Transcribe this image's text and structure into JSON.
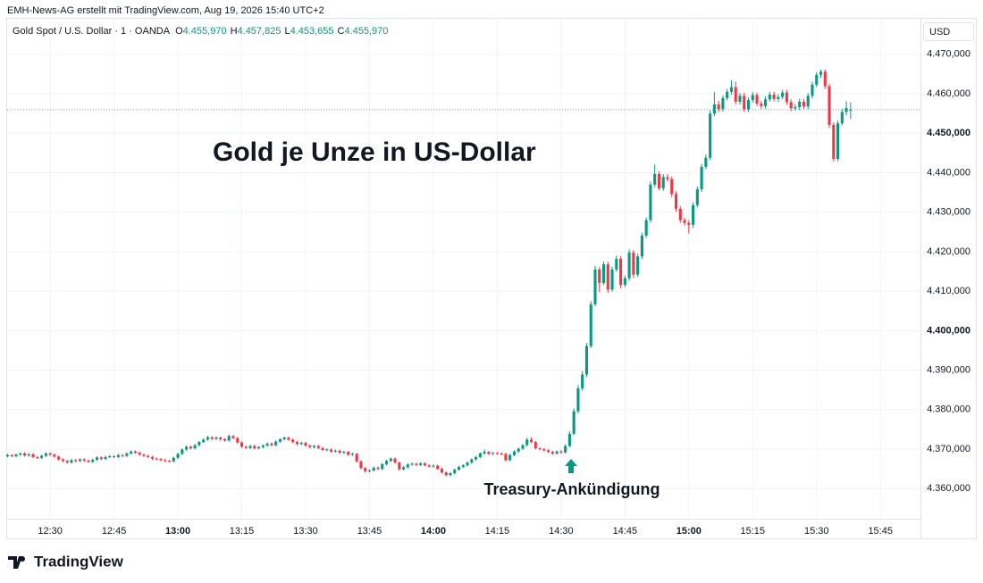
{
  "chart_data": {
    "type": "candlestick",
    "source_note": "EMH-News-AG erstellt mit TradingView.com, Aug 19, 2026 15:40 UTC+2",
    "symbol": "Gold Spot / U.S. Dollar · 1 · OANDA",
    "ohlc_legend": [
      {
        "label": "O",
        "value": "4.455,970"
      },
      {
        "label": "H",
        "value": "4.457,825"
      },
      {
        "label": "L",
        "value": "4.453,655"
      },
      {
        "label": "C",
        "value": "4.455,970"
      }
    ],
    "currency": "USD",
    "title": "Gold je Unze in US-Dollar",
    "annotation": "Treasury-Ankündigung",
    "brand": "TradingView",
    "up_color": "#089981",
    "down_color": "#f23645",
    "grid": true,
    "xlim": [
      -0.1,
      214.4
    ],
    "xticks": [
      {
        "value": 10,
        "label": "12:30"
      },
      {
        "value": 25,
        "label": "12:45"
      },
      {
        "value": 40,
        "label": "13:00"
      },
      {
        "value": 55,
        "label": "13:15"
      },
      {
        "value": 70,
        "label": "13:30"
      },
      {
        "value": 85,
        "label": "13:45"
      },
      {
        "value": 100,
        "label": "14:00"
      },
      {
        "value": 115,
        "label": "14:15"
      },
      {
        "value": 130,
        "label": "14:30"
      },
      {
        "value": 145,
        "label": "14:45"
      },
      {
        "value": 160,
        "label": "15:00"
      },
      {
        "value": 175,
        "label": "15:15"
      },
      {
        "value": 190,
        "label": "15:30"
      },
      {
        "value": 205,
        "label": "15:45"
      }
    ],
    "ylim": [
      4347.4,
      4472.9
    ],
    "yticks": [
      {
        "value": 4360,
        "label": "4.360,000"
      },
      {
        "value": 4370,
        "label": "4.370,000"
      },
      {
        "value": 4380,
        "label": "4.380,000"
      },
      {
        "value": 4390,
        "label": "4.390,000"
      },
      {
        "value": 4400,
        "label": "4.400,000"
      },
      {
        "value": 4410,
        "label": "4.410,000"
      },
      {
        "value": 4420,
        "label": "4.420,000"
      },
      {
        "value": 4430,
        "label": "4.430,000"
      },
      {
        "value": 4440,
        "label": "4.440,000"
      },
      {
        "value": 4450,
        "label": "4.450,000"
      },
      {
        "value": 4460,
        "label": "4.460,000"
      },
      {
        "value": 4470,
        "label": "4.470,000"
      }
    ],
    "open": [
      4368.2,
      4368.5,
      4368.2,
      4368.6,
      4368.9,
      4368.4,
      4368.7,
      4368.0,
      4367.8,
      4368.3,
      4368.9,
      4368.6,
      4368.1,
      4367.4,
      4367.0,
      4366.6,
      4367.2,
      4367.0,
      4367.4,
      4367.1,
      4366.8,
      4367.3,
      4367.9,
      4367.5,
      4368.0,
      4368.2,
      4368.0,
      4368.5,
      4368.3,
      4368.9,
      4369.4,
      4369.1,
      4368.6,
      4368.3,
      4368.0,
      4367.6,
      4367.5,
      4367.2,
      4367.0,
      4366.9,
      4367.8,
      4368.8,
      4369.9,
      4370.6,
      4370.2,
      4371.0,
      4371.8,
      4372.4,
      4373.0,
      4372.6,
      4372.9,
      4372.5,
      4372.2,
      4373.3,
      4372.8,
      4371.7,
      4370.6,
      4370.3,
      4370.8,
      4370.2,
      4370.5,
      4370.9,
      4371.4,
      4371.0,
      4371.9,
      4372.5,
      4372.9,
      4372.4,
      4371.8,
      4371.3,
      4371.6,
      4370.9,
      4370.5,
      4370.8,
      4370.3,
      4369.8,
      4369.9,
      4369.4,
      4369.6,
      4369.1,
      4369.3,
      4368.6,
      4368.8,
      4366.9,
      4365.2,
      4364.4,
      4364.6,
      4365.3,
      4365.0,
      4366.2,
      4367.0,
      4367.6,
      4366.6,
      4364.9,
      4365.4,
      4366.1,
      4366.3,
      4366.0,
      4366.4,
      4365.9,
      4365.6,
      4365.8,
      4365.0,
      4364.1,
      4363.4,
      4363.9,
      4364.8,
      4365.5,
      4365.9,
      4366.6,
      4367.4,
      4368.0,
      4368.9,
      4369.3,
      4368.8,
      4369.0,
      4368.9,
      4368.8,
      4367.2,
      4368.5,
      4369.4,
      4370.1,
      4371.0,
      4372.4,
      4371.8,
      4370.2,
      4370.0,
      4369.7,
      4369.3,
      4368.9,
      4369.4,
      4369.2,
      4370.8,
      4373.9,
      4379.6,
      4385.4,
      4388.9,
      4396.1,
      4406.7,
      4415.5,
      4412.1,
      4416.8,
      4410.4,
      4415.5,
      4418.2,
      4411.6,
      4413.3,
      4419.8,
      4414.2,
      4418.8,
      4424.1,
      4428.0,
      4437.0,
      4439.7,
      4436.1,
      4438.9,
      4438.4,
      4434.6,
      4430.9,
      4428.0,
      4427.3,
      4426.8,
      4431.8,
      4435.8,
      4441.5,
      4443.8,
      4455.0,
      4457.3,
      4456.1,
      4458.9,
      4460.5,
      4461.7,
      4458.0,
      4459.5,
      4456.1,
      4458.4,
      4459.7,
      4457.5,
      4456.9,
      4458.6,
      4459.8,
      4458.7,
      4459.2,
      4460.3,
      4457.9,
      4456.3,
      4456.6,
      4458.0,
      4456.8,
      4459.5,
      4462.3,
      4464.8,
      4465.6,
      4461.9,
      4452.1,
      4443.5,
      4452.5,
      4455.4,
      4455.97
    ],
    "high": [
      4368.8,
      4368.7,
      4368.9,
      4369.2,
      4369.2,
      4369.0,
      4369.0,
      4368.3,
      4368.6,
      4369.2,
      4369.2,
      4368.9,
      4368.4,
      4367.7,
      4367.3,
      4367.5,
      4367.5,
      4367.7,
      4367.7,
      4367.4,
      4367.6,
      4368.2,
      4368.2,
      4368.3,
      4368.5,
      4368.5,
      4368.8,
      4368.8,
      4369.2,
      4369.7,
      4369.7,
      4369.4,
      4368.9,
      4368.6,
      4368.3,
      4367.9,
      4367.8,
      4367.5,
      4367.3,
      4368.1,
      4369.1,
      4370.2,
      4370.9,
      4370.9,
      4371.3,
      4372.1,
      4372.7,
      4373.4,
      4373.3,
      4373.3,
      4373.2,
      4372.8,
      4373.7,
      4373.6,
      4373.1,
      4372.0,
      4370.9,
      4371.1,
      4371.1,
      4370.8,
      4371.2,
      4371.7,
      4371.7,
      4372.2,
      4372.8,
      4373.2,
      4373.2,
      4372.7,
      4372.1,
      4371.9,
      4371.9,
      4371.2,
      4371.1,
      4371.1,
      4370.6,
      4370.2,
      4370.2,
      4369.9,
      4369.9,
      4369.6,
      4369.6,
      4369.1,
      4369.1,
      4367.2,
      4365.5,
      4364.9,
      4365.6,
      4365.6,
      4366.5,
      4367.3,
      4367.9,
      4367.9,
      4366.9,
      4365.7,
      4366.4,
      4366.6,
      4366.6,
      4366.7,
      4366.7,
      4366.2,
      4366.1,
      4366.1,
      4365.3,
      4364.4,
      4364.2,
      4365.1,
      4365.8,
      4366.2,
      4366.9,
      4367.7,
      4368.3,
      4369.2,
      4369.9,
      4369.6,
      4369.3,
      4369.3,
      4369.2,
      4369.1,
      4368.8,
      4369.7,
      4370.4,
      4371.3,
      4372.9,
      4373.0,
      4372.1,
      4370.5,
      4370.3,
      4370.0,
      4369.6,
      4369.7,
      4369.8,
      4371.2,
      4374.5,
      4380.3,
      4386.2,
      4389.8,
      4396.9,
      4407.5,
      4416.4,
      4416.1,
      4417.5,
      4417.4,
      4416.2,
      4419.0,
      4418.9,
      4414.0,
      4420.6,
      4420.4,
      4419.5,
      4424.8,
      4428.7,
      4437.8,
      4442.1,
      4440.4,
      4439.6,
      4439.7,
      4439.1,
      4435.3,
      4431.6,
      4428.6,
      4428.0,
      4432.5,
      4436.5,
      4442.3,
      4444.6,
      4455.8,
      4460.4,
      4458.2,
      4459.6,
      4461.3,
      4463.4,
      4463.1,
      4460.2,
      4460.3,
      4459.1,
      4460.4,
      4460.3,
      4458.2,
      4459.3,
      4460.5,
      4460.5,
      4459.9,
      4461.0,
      4461.0,
      4458.6,
      4457.3,
      4458.7,
      4458.7,
      4460.2,
      4463.1,
      4465.5,
      4466.1,
      4466.2,
      4462.5,
      4452.8,
      4453.2,
      4456.2,
      4458.1,
      4457.825
    ],
    "low": [
      4367.9,
      4368.0,
      4367.9,
      4368.3,
      4368.1,
      4368.1,
      4367.7,
      4367.5,
      4367.5,
      4368.0,
      4368.3,
      4367.8,
      4367.1,
      4366.7,
      4366.3,
      4366.3,
      4366.7,
      4366.7,
      4366.8,
      4366.5,
      4366.5,
      4367.0,
      4367.2,
      4367.2,
      4367.7,
      4367.7,
      4367.7,
      4368.0,
      4368.0,
      4368.6,
      4368.8,
      4368.3,
      4368.0,
      4367.7,
      4367.3,
      4367.2,
      4366.9,
      4366.7,
      4366.6,
      4366.6,
      4367.5,
      4368.5,
      4369.6,
      4369.9,
      4369.9,
      4370.7,
      4371.5,
      4372.1,
      4372.3,
      4372.3,
      4372.2,
      4371.9,
      4371.9,
      4372.5,
      4371.4,
      4370.3,
      4370.0,
      4370.0,
      4369.9,
      4369.9,
      4370.2,
      4370.6,
      4370.7,
      4370.7,
      4371.6,
      4372.2,
      4372.1,
      4371.5,
      4371.0,
      4371.0,
      4370.6,
      4370.2,
      4370.2,
      4370.0,
      4369.5,
      4369.5,
      4369.1,
      4369.1,
      4368.8,
      4368.8,
      4368.3,
      4368.3,
      4366.6,
      4364.9,
      4364.1,
      4364.1,
      4364.3,
      4364.7,
      4364.7,
      4365.9,
      4366.7,
      4366.3,
      4364.6,
      4364.6,
      4365.1,
      4365.8,
      4365.7,
      4365.7,
      4365.6,
      4365.3,
      4365.3,
      4364.7,
      4363.8,
      4363.1,
      4363.1,
      4363.6,
      4364.5,
      4365.2,
      4365.6,
      4366.3,
      4367.1,
      4367.7,
      4368.6,
      4368.5,
      4368.5,
      4368.6,
      4368.5,
      4366.9,
      4366.9,
      4368.2,
      4369.1,
      4369.8,
      4370.7,
      4371.5,
      4369.9,
      4369.7,
      4369.4,
      4369.0,
      4368.6,
      4368.6,
      4368.8,
      4368.9,
      4370.5,
      4373.5,
      4379.0,
      4384.8,
      4388.3,
      4395.6,
      4406.2,
      4409.8,
      4411.5,
      4409.6,
      4409.9,
      4414.9,
      4410.8,
      4411.0,
      4412.7,
      4413.4,
      4413.6,
      4418.2,
      4423.5,
      4427.4,
      4436.4,
      4435.5,
      4435.4,
      4437.8,
      4433.8,
      4430.2,
      4427.3,
      4426.6,
      4424.6,
      4426.0,
      4431.2,
      4435.1,
      4440.9,
      4443.2,
      4454.3,
      4455.4,
      4455.5,
      4458.3,
      4459.8,
      4457.3,
      4457.3,
      4455.4,
      4455.4,
      4457.8,
      4456.9,
      4456.2,
      4456.2,
      4458.0,
      4458.1,
      4458.0,
      4458.6,
      4457.2,
      4455.6,
      4455.7,
      4455.9,
      4456.1,
      4456.1,
      4458.8,
      4461.7,
      4464.0,
      4461.2,
      4451.4,
      4442.9,
      4442.9,
      4452.0,
      4454.6,
      4453.655
    ],
    "close": [
      4368.5,
      4368.2,
      4368.6,
      4368.9,
      4368.4,
      4368.7,
      4368.0,
      4367.8,
      4368.3,
      4368.9,
      4368.6,
      4368.1,
      4367.4,
      4367.0,
      4366.6,
      4367.2,
      4367.0,
      4367.4,
      4367.1,
      4366.8,
      4367.3,
      4367.9,
      4367.5,
      4368.0,
      4368.2,
      4368.0,
      4368.5,
      4368.3,
      4368.9,
      4369.4,
      4369.1,
      4368.6,
      4368.3,
      4368.0,
      4367.6,
      4367.5,
      4367.2,
      4367.0,
      4366.9,
      4367.8,
      4368.8,
      4369.9,
      4370.6,
      4370.2,
      4371.0,
      4371.8,
      4372.4,
      4373.0,
      4372.6,
      4372.9,
      4372.5,
      4372.2,
      4373.3,
      4372.8,
      4371.7,
      4370.6,
      4370.3,
      4370.8,
      4370.2,
      4370.5,
      4370.9,
      4371.4,
      4371.0,
      4371.9,
      4372.5,
      4372.9,
      4372.4,
      4371.8,
      4371.3,
      4371.6,
      4370.9,
      4370.5,
      4370.8,
      4370.3,
      4369.8,
      4369.9,
      4369.4,
      4369.6,
      4369.1,
      4369.3,
      4368.6,
      4368.8,
      4366.9,
      4365.2,
      4364.4,
      4364.6,
      4365.3,
      4365.0,
      4366.2,
      4367.0,
      4367.6,
      4366.6,
      4364.9,
      4365.4,
      4366.1,
      4366.3,
      4366.0,
      4366.4,
      4365.9,
      4365.6,
      4365.8,
      4365.0,
      4364.1,
      4363.4,
      4363.9,
      4364.8,
      4365.5,
      4365.9,
      4366.6,
      4367.4,
      4368.0,
      4368.9,
      4369.3,
      4368.8,
      4369.0,
      4368.9,
      4368.8,
      4367.2,
      4368.5,
      4369.4,
      4370.1,
      4371.0,
      4372.4,
      4371.8,
      4370.2,
      4370.0,
      4369.7,
      4369.3,
      4368.9,
      4369.4,
      4369.2,
      4370.8,
      4373.9,
      4379.6,
      4385.4,
      4388.9,
      4396.1,
      4406.7,
      4415.5,
      4412.1,
      4416.8,
      4410.4,
      4415.5,
      4418.2,
      4411.6,
      4413.3,
      4419.8,
      4414.2,
      4418.8,
      4424.1,
      4428.0,
      4437.0,
      4439.7,
      4436.1,
      4438.9,
      4438.4,
      4434.6,
      4430.9,
      4428.0,
      4427.3,
      4426.8,
      4431.8,
      4435.8,
      4441.5,
      4443.8,
      4455.0,
      4457.3,
      4456.1,
      4458.9,
      4460.5,
      4461.7,
      4458.0,
      4459.5,
      4456.1,
      4458.4,
      4459.7,
      4457.5,
      4456.9,
      4458.6,
      4459.8,
      4458.7,
      4459.2,
      4460.3,
      4457.9,
      4456.3,
      4456.6,
      4458.0,
      4456.8,
      4459.5,
      4462.3,
      4464.8,
      4465.6,
      4461.9,
      4452.1,
      4443.5,
      4452.5,
      4455.4,
      4456.4,
      4455.97
    ]
  }
}
